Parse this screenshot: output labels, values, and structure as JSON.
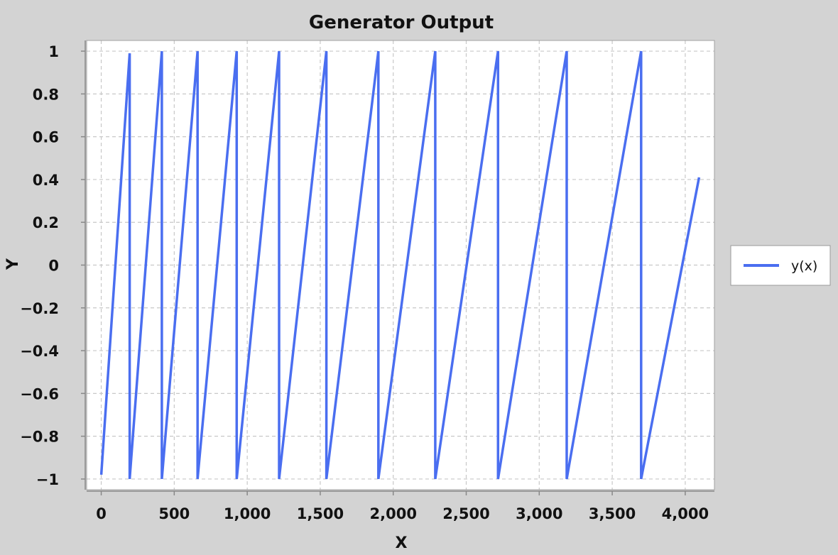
{
  "chart_data": {
    "type": "line",
    "title": "Generator Output",
    "xlabel": "X",
    "ylabel": "Y",
    "xlim": [
      -100,
      4200
    ],
    "ylim": [
      -1.05,
      1.05
    ],
    "grid": true,
    "legend_position": "right",
    "x_ticks": [
      0,
      500,
      1000,
      1500,
      2000,
      2500,
      3000,
      3500,
      4000
    ],
    "x_tick_labels": [
      "0",
      "500",
      "1,000",
      "1,500",
      "2,000",
      "2,500",
      "3,000",
      "3,500",
      "4,000"
    ],
    "y_ticks": [
      1,
      0.8,
      0.6,
      0.4,
      0.2,
      0,
      -0.2,
      -0.4,
      -0.6,
      -0.8,
      -1
    ],
    "y_tick_labels": [
      "1",
      "0.8",
      "0.6",
      "0.4",
      "0.2",
      "0",
      "−0.2",
      "−0.4",
      "−0.6",
      "−0.8",
      "−1"
    ],
    "series": [
      {
        "name": "y(x)",
        "color": "#4a6ef0",
        "x": [
          0,
          195,
          195,
          415,
          415,
          660,
          660,
          928,
          928,
          1218,
          1218,
          1542,
          1542,
          1898,
          1898,
          2288,
          2288,
          2718,
          2718,
          3188,
          3188,
          3698,
          3698,
          4095
        ],
        "y": [
          -0.98,
          0.99,
          -1,
          1,
          -1,
          1,
          -1,
          1,
          -1,
          1,
          -1,
          1,
          -1,
          1,
          -1,
          1,
          -1,
          1,
          -1,
          1,
          -1,
          1,
          -1,
          0.41
        ]
      }
    ]
  }
}
